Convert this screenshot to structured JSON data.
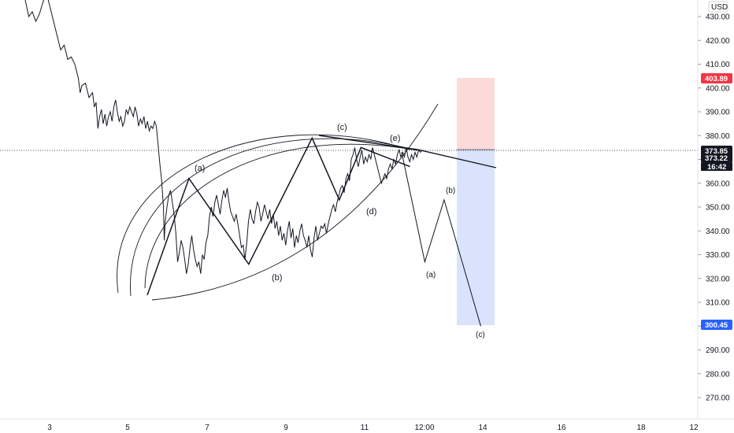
{
  "chart_data": {
    "type": "line",
    "currency": "USD",
    "x_ticks": [
      "3",
      "5",
      "7",
      "9",
      "11",
      "12:00",
      "14",
      "16",
      "18",
      "12"
    ],
    "y_ticks": [
      430,
      420,
      410,
      400,
      390,
      380,
      370,
      360,
      350,
      340,
      330,
      320,
      310,
      300,
      290,
      280,
      270
    ],
    "ylim": [
      264,
      436
    ],
    "grid": false,
    "price_tags": {
      "stop_price": "403.89",
      "current_price": "373.85",
      "second_price": "373.22",
      "countdown": "16:42",
      "target_price": "300.45"
    },
    "colors": {
      "stop_tag": "#f23645",
      "current_tag": "#131722",
      "target_tag": "#2962ff",
      "risk_zone": "#fbd3d3",
      "reward_zone": "#d6e0fb"
    },
    "price_series": [
      [
        0,
        437
      ],
      [
        2,
        430
      ],
      [
        4,
        432
      ],
      [
        6,
        428
      ],
      [
        8,
        431
      ],
      [
        10,
        436
      ],
      [
        12,
        440
      ],
      [
        14,
        434
      ],
      [
        16,
        428
      ],
      [
        18,
        422
      ],
      [
        20,
        416
      ],
      [
        22,
        418
      ],
      [
        24,
        412
      ],
      [
        26,
        413
      ],
      [
        28,
        410
      ],
      [
        30,
        404
      ],
      [
        31,
        398
      ],
      [
        32,
        401
      ],
      [
        34,
        402
      ],
      [
        36,
        396
      ],
      [
        38,
        398
      ],
      [
        39,
        392
      ],
      [
        40,
        394
      ],
      [
        41,
        383
      ],
      [
        42,
        388
      ],
      [
        43,
        391
      ],
      [
        44,
        385
      ],
      [
        45,
        389
      ],
      [
        46,
        384
      ],
      [
        47,
        388
      ],
      [
        48,
        390
      ],
      [
        49,
        386
      ],
      [
        50,
        392
      ],
      [
        51,
        395
      ],
      [
        52,
        390
      ],
      [
        53,
        386
      ],
      [
        54,
        388
      ],
      [
        55,
        384
      ],
      [
        56,
        386
      ],
      [
        57,
        391
      ],
      [
        58,
        389
      ],
      [
        59,
        392
      ],
      [
        60,
        390
      ],
      [
        61,
        388
      ],
      [
        62,
        392
      ],
      [
        63,
        389
      ],
      [
        64,
        384
      ],
      [
        65,
        387
      ],
      [
        66,
        385
      ],
      [
        67,
        388
      ],
      [
        68,
        383
      ],
      [
        69,
        386
      ],
      [
        70,
        382
      ],
      [
        71,
        384
      ],
      [
        72,
        383
      ],
      [
        73,
        386
      ],
      [
        74,
        384
      ],
      [
        75,
        376
      ],
      [
        76,
        368
      ],
      [
        77,
        361
      ],
      [
        78,
        350
      ],
      [
        78.5,
        336
      ],
      [
        79,
        344
      ],
      [
        80,
        350
      ],
      [
        81,
        355
      ],
      [
        82,
        357
      ],
      [
        83,
        352
      ],
      [
        84,
        347
      ],
      [
        85,
        339
      ],
      [
        86,
        327
      ],
      [
        87,
        331
      ],
      [
        88,
        336
      ],
      [
        89,
        333
      ],
      [
        90,
        328
      ],
      [
        91,
        322
      ],
      [
        92,
        326
      ],
      [
        93,
        333
      ],
      [
        94,
        338
      ],
      [
        95,
        332
      ],
      [
        96,
        328
      ],
      [
        97,
        325
      ],
      [
        98,
        327
      ],
      [
        99,
        322
      ],
      [
        100,
        330
      ],
      [
        101,
        328
      ],
      [
        102,
        335
      ],
      [
        103,
        338
      ],
      [
        104,
        346
      ],
      [
        105,
        350
      ],
      [
        106,
        346
      ],
      [
        107,
        352
      ],
      [
        108,
        355
      ],
      [
        109,
        351
      ],
      [
        110,
        347
      ],
      [
        111,
        353
      ],
      [
        112,
        357
      ],
      [
        113,
        354
      ],
      [
        114,
        358
      ],
      [
        115,
        352
      ],
      [
        116,
        348
      ],
      [
        117,
        346
      ],
      [
        118,
        344
      ],
      [
        119,
        347
      ],
      [
        120,
        343
      ],
      [
        121,
        338
      ],
      [
        122,
        333
      ],
      [
        123,
        334
      ],
      [
        124,
        328
      ],
      [
        125,
        335
      ],
      [
        126,
        344
      ],
      [
        127,
        349
      ],
      [
        128,
        345
      ],
      [
        129,
        343
      ],
      [
        130,
        348
      ],
      [
        131,
        352
      ],
      [
        132,
        350
      ],
      [
        133,
        344
      ],
      [
        134,
        347
      ],
      [
        135,
        351
      ],
      [
        136,
        348
      ],
      [
        137,
        345
      ],
      [
        138,
        349
      ],
      [
        139,
        343
      ],
      [
        140,
        347
      ],
      [
        141,
        341
      ],
      [
        142,
        344
      ],
      [
        143,
        338
      ],
      [
        144,
        342
      ],
      [
        145,
        336
      ],
      [
        146,
        339
      ],
      [
        147,
        334
      ],
      [
        148,
        340
      ],
      [
        149,
        344
      ],
      [
        150,
        337
      ],
      [
        151,
        341
      ],
      [
        152,
        333
      ],
      [
        153,
        338
      ],
      [
        154,
        335
      ],
      [
        155,
        340
      ],
      [
        156,
        343
      ],
      [
        157,
        338
      ],
      [
        158,
        336
      ],
      [
        159,
        333
      ],
      [
        160,
        338
      ],
      [
        161,
        332
      ],
      [
        162,
        329
      ],
      [
        163,
        337
      ],
      [
        164,
        342
      ],
      [
        165,
        336
      ],
      [
        166,
        339
      ],
      [
        167,
        342
      ],
      [
        168,
        341
      ],
      [
        169,
        343
      ],
      [
        170,
        339
      ],
      [
        171,
        343
      ],
      [
        172,
        346
      ],
      [
        173,
        349
      ],
      [
        174,
        351
      ],
      [
        175,
        348
      ],
      [
        176,
        352
      ],
      [
        177,
        355
      ],
      [
        178,
        358
      ],
      [
        179,
        359
      ],
      [
        180,
        356
      ],
      [
        181,
        362
      ],
      [
        182,
        364
      ],
      [
        183,
        361
      ],
      [
        184,
        370
      ],
      [
        185,
        372
      ],
      [
        186,
        375
      ],
      [
        187,
        370
      ],
      [
        188,
        367
      ],
      [
        189,
        371
      ],
      [
        190,
        374
      ],
      [
        191,
        368
      ],
      [
        192,
        371
      ],
      [
        193,
        369
      ],
      [
        194,
        372
      ],
      [
        195,
        370
      ],
      [
        196,
        375
      ],
      [
        197,
        372
      ],
      [
        198,
        369
      ],
      [
        199,
        366
      ],
      [
        200,
        363
      ],
      [
        201,
        360
      ],
      [
        202,
        362
      ],
      [
        203,
        364
      ],
      [
        204,
        362
      ],
      [
        205,
        366
      ],
      [
        206,
        368
      ],
      [
        207,
        366
      ],
      [
        208,
        370
      ],
      [
        209,
        368
      ],
      [
        210,
        372
      ],
      [
        211,
        374
      ],
      [
        212,
        371
      ],
      [
        213,
        373
      ],
      [
        214,
        371
      ],
      [
        215,
        375
      ],
      [
        216,
        371
      ],
      [
        217,
        369
      ],
      [
        218,
        372
      ],
      [
        219,
        370
      ],
      [
        220,
        373
      ],
      [
        221,
        371
      ],
      [
        222,
        374
      ],
      [
        223,
        373
      ],
      [
        224,
        374
      ]
    ]
  },
  "wave_labels": {
    "a": "(a)",
    "b": "(b)",
    "c": "(c)",
    "d": "(d)",
    "e": "(e)",
    "proj_a": "(a)",
    "proj_b": "(b)",
    "proj_c": "(c)"
  },
  "projection": [
    [
      0,
      373
    ],
    [
      12,
      327
    ],
    [
      22,
      353
    ],
    [
      41,
      300
    ]
  ],
  "impulse_path": [
    [
      0,
      313
    ],
    [
      23,
      362
    ],
    [
      56,
      326
    ],
    [
      91,
      379
    ],
    [
      106,
      353
    ],
    [
      118,
      375
    ],
    [
      145,
      367
    ]
  ]
}
